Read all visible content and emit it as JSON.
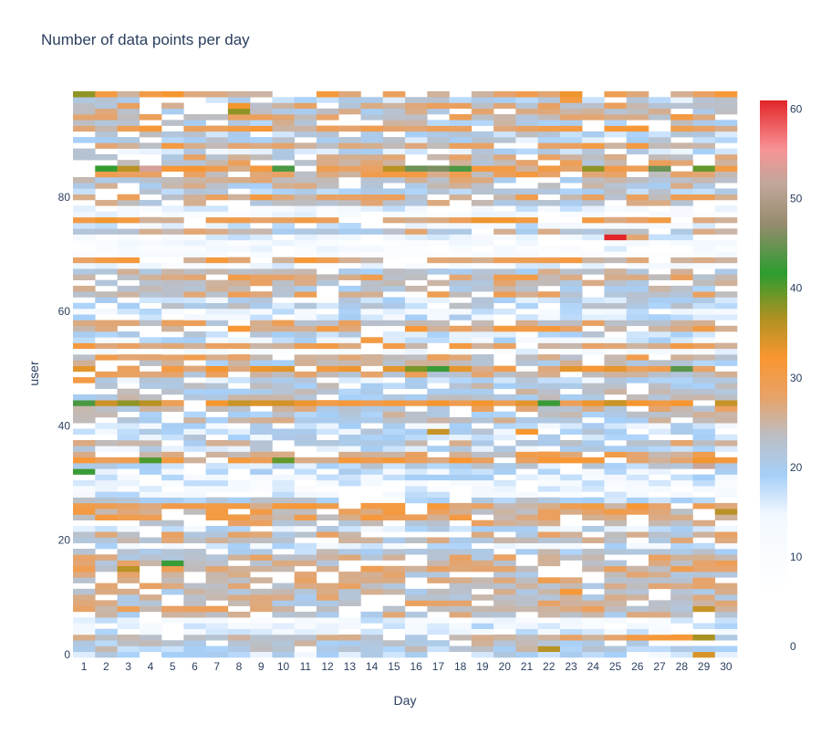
{
  "chart_data": {
    "type": "heatmap",
    "title": "Number of data points per day",
    "xlabel": "Day",
    "ylabel": "user",
    "x_categories": [
      "1",
      "2",
      "3",
      "4",
      "5",
      "6",
      "7",
      "8",
      "9",
      "10",
      "11",
      "12",
      "13",
      "14",
      "15",
      "16",
      "17",
      "18",
      "19",
      "20",
      "21",
      "22",
      "23",
      "24",
      "25",
      "26",
      "27",
      "28",
      "29",
      "30"
    ],
    "y_range": [
      -0.5,
      98.5
    ],
    "y_ticks": [
      0,
      20,
      40,
      60,
      80
    ],
    "colorbar": {
      "range": [
        0,
        62
      ],
      "ticks": [
        0,
        10,
        20,
        30,
        40,
        50,
        60
      ],
      "colorscale": [
        [
          0.0,
          "#ffffff"
        ],
        [
          0.16,
          "#f2f8ff"
        ],
        [
          0.24,
          "#a6cff8"
        ],
        [
          0.32,
          "#bcbec4"
        ],
        [
          0.4,
          "#e8a266"
        ],
        [
          0.48,
          "#f99630"
        ],
        [
          0.56,
          "#ad9122"
        ],
        [
          0.65,
          "#2d9d30"
        ],
        [
          0.75,
          "#978b6e"
        ],
        [
          0.83,
          "#c0a79a"
        ],
        [
          0.9,
          "#f89496"
        ],
        [
          1.0,
          "#e2262a"
        ]
      ]
    },
    "row_values": [
      13,
      17,
      18,
      21,
      10,
      10,
      9,
      20,
      22,
      21,
      20,
      19,
      21,
      23,
      21,
      23,
      22,
      21,
      17,
      11,
      20,
      21,
      13,
      22,
      24,
      24,
      25,
      16,
      10,
      8,
      9,
      11,
      12,
      15,
      26,
      23,
      14,
      20,
      14,
      14,
      12,
      19,
      18,
      21,
      30,
      17,
      18,
      17,
      14,
      22,
      27,
      18,
      23,
      7,
      25,
      11,
      15,
      25,
      22,
      12,
      10,
      16,
      14,
      22,
      18,
      21,
      23,
      19,
      8,
      25,
      5,
      7,
      6,
      9,
      20,
      10,
      26,
      7,
      9,
      20,
      23,
      17,
      19,
      20,
      24,
      26,
      22,
      21,
      14,
      24,
      15,
      16,
      25,
      18,
      22,
      20,
      22,
      15,
      26
    ],
    "cells": [
      {
        "x": "29",
        "y": 0,
        "v": 32
      },
      {
        "x": "22",
        "y": 1,
        "v": 34
      },
      {
        "x": "17",
        "y": 98,
        "v": 22
      },
      {
        "x": "25",
        "y": 73,
        "v": 62
      },
      {
        "x": "26",
        "y": 73,
        "v": 24
      },
      {
        "x": "29",
        "y": 33,
        "v": 52
      },
      {
        "x": "1",
        "y": 32,
        "v": 41
      },
      {
        "x": "16",
        "y": 50,
        "v": 37
      },
      {
        "x": "17",
        "y": 50,
        "v": 41
      },
      {
        "x": "28",
        "y": 50,
        "v": 43
      },
      {
        "x": "1",
        "y": 44,
        "v": 42
      },
      {
        "x": "3",
        "y": 44,
        "v": 36
      },
      {
        "x": "4",
        "y": 44,
        "v": 34
      },
      {
        "x": "22",
        "y": 44,
        "v": 41
      },
      {
        "x": "5",
        "y": 16,
        "v": 41
      },
      {
        "x": "3",
        "y": 15,
        "v": 34
      },
      {
        "x": "30",
        "y": 25,
        "v": 34
      },
      {
        "x": "4",
        "y": 34,
        "v": 39
      },
      {
        "x": "10",
        "y": 34,
        "v": 38
      },
      {
        "x": "17",
        "y": 39,
        "v": 33
      },
      {
        "x": "21",
        "y": 39,
        "v": 30
      },
      {
        "x": "1",
        "y": 98,
        "v": 36
      },
      {
        "x": "2",
        "y": 98,
        "v": 28
      },
      {
        "x": "2",
        "y": 85,
        "v": 40
      },
      {
        "x": "3",
        "y": 85,
        "v": 34
      },
      {
        "x": "4",
        "y": 85,
        "v": 53
      },
      {
        "x": "10",
        "y": 85,
        "v": 42
      },
      {
        "x": "16",
        "y": 85,
        "v": 44
      },
      {
        "x": "17",
        "y": 85,
        "v": 45
      },
      {
        "x": "18",
        "y": 85,
        "v": 42
      },
      {
        "x": "24",
        "y": 85,
        "v": 36
      },
      {
        "x": "27",
        "y": 85,
        "v": 44
      },
      {
        "x": "29",
        "y": 85,
        "v": 38
      },
      {
        "x": "15",
        "y": 85,
        "v": 34
      },
      {
        "x": "8",
        "y": 96,
        "v": 30
      },
      {
        "x": "8",
        "y": 95,
        "v": 36
      },
      {
        "x": "28",
        "y": 94,
        "v": 28
      },
      {
        "x": "23",
        "y": 97,
        "v": 28
      },
      {
        "x": "26",
        "y": 3,
        "v": 28
      },
      {
        "x": "27",
        "y": 3,
        "v": 29
      },
      {
        "x": "28",
        "y": 3,
        "v": 29
      },
      {
        "x": "29",
        "y": 3,
        "v": 35
      },
      {
        "x": "23",
        "y": 11,
        "v": 29
      },
      {
        "x": "9",
        "y": 80,
        "v": 28
      },
      {
        "x": "29",
        "y": 8,
        "v": 33
      },
      {
        "x": "1",
        "y": 48,
        "v": 28
      },
      {
        "x": "14",
        "y": 55,
        "v": 28
      }
    ]
  }
}
